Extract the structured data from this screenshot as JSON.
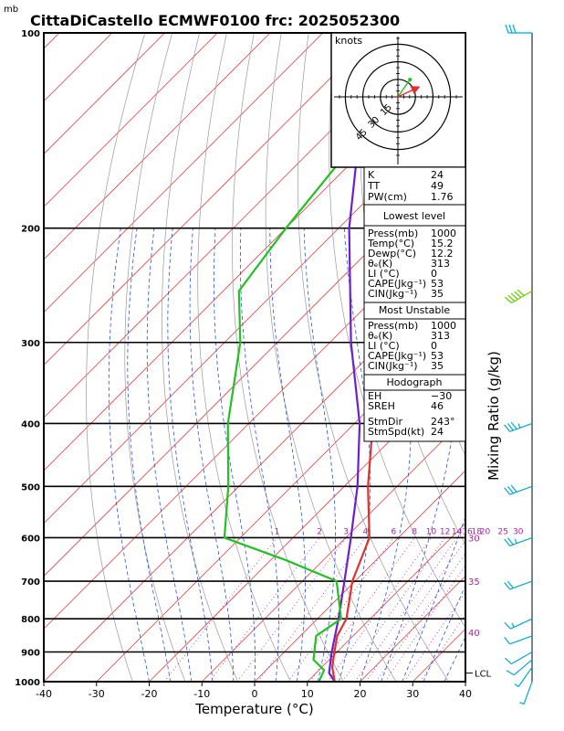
{
  "title": "CittaDiCastello ECMWF0100  frc: 2025052300",
  "units_label": "mb",
  "colors": {
    "temperature": "#e03030",
    "dewpoint": "#22c022",
    "parcel": "#6a1fd0",
    "isotherm": "#e64040",
    "dry_adiabat": "#999999",
    "moist_adiabat": "#2255dd",
    "mixing_ratio": "#aa22aa",
    "wind": "#00aacc"
  },
  "chart_data": {
    "type": "skew-t",
    "title": "CittaDiCastello ECMWF0100  frc: 2025052300",
    "xlabel": "Temperature (°C)",
    "ylabel": "mb",
    "right_axis_label": "Mixing Ratio (g/kg)",
    "x_ticks": [
      -40,
      -30,
      -20,
      -10,
      0,
      10,
      20,
      30,
      40
    ],
    "x_range": [
      -40,
      40
    ],
    "p_ticks": [
      100,
      200,
      300,
      400,
      500,
      600,
      700,
      800,
      900,
      1000
    ],
    "p_range": [
      1000,
      100
    ],
    "mixing_ratio_labels": [
      "1",
      "2",
      "3",
      "4",
      "6",
      "8",
      "10",
      "12",
      "14",
      "16",
      "18",
      "20",
      "25",
      "30"
    ],
    "mixing_ratio_values": [
      1,
      2,
      3,
      4,
      6,
      8,
      10,
      12,
      14,
      16,
      18,
      20,
      25,
      30
    ],
    "theta_e_labels": [
      {
        "text": "30",
        "p": 700
      },
      {
        "text": "35",
        "p": 700
      },
      {
        "text": "40",
        "p": 850
      }
    ],
    "lcl_label": "LCL",
    "lcl_pressure": 970,
    "temperature": [
      {
        "p": 1000,
        "t": 15.2
      },
      {
        "p": 950,
        "t": 12.0
      },
      {
        "p": 900,
        "t": 9.5
      },
      {
        "p": 850,
        "t": 7.0
      },
      {
        "p": 800,
        "t": 5.5
      },
      {
        "p": 700,
        "t": -0.5
      },
      {
        "p": 600,
        "t": -5.5
      },
      {
        "p": 500,
        "t": -15.5
      },
      {
        "p": 400,
        "t": -26.5
      },
      {
        "p": 300,
        "t": -41.0
      },
      {
        "p": 250,
        "t": -51.0
      },
      {
        "p": 200,
        "t": -51.5
      },
      {
        "p": 150,
        "t": -54.0
      },
      {
        "p": 125,
        "t": -55.0
      }
    ],
    "dewpoint": [
      {
        "p": 1000,
        "t": 12.2
      },
      {
        "p": 960,
        "t": 11.0
      },
      {
        "p": 925,
        "t": 7.0
      },
      {
        "p": 850,
        "t": 3.0
      },
      {
        "p": 800,
        "t": 4.5
      },
      {
        "p": 700,
        "t": -3.5
      },
      {
        "p": 650,
        "t": -17.0
      },
      {
        "p": 600,
        "t": -33.0
      },
      {
        "p": 500,
        "t": -42.0
      },
      {
        "p": 400,
        "t": -54.0
      },
      {
        "p": 300,
        "t": -67.0
      },
      {
        "p": 250,
        "t": -77.0
      },
      {
        "p": 200,
        "t": -80.0
      },
      {
        "p": 100,
        "t": -87.0
      }
    ],
    "parcel": [
      {
        "p": 1000,
        "t": 15.2
      },
      {
        "p": 970,
        "t": 12.5
      },
      {
        "p": 900,
        "t": 9.0
      },
      {
        "p": 800,
        "t": 4.0
      },
      {
        "p": 700,
        "t": -2.0
      },
      {
        "p": 600,
        "t": -9.0
      },
      {
        "p": 500,
        "t": -17.5
      },
      {
        "p": 400,
        "t": -29.0
      },
      {
        "p": 300,
        "t": -46.0
      },
      {
        "p": 200,
        "t": -68.0
      },
      {
        "p": 140,
        "t": -85.0
      },
      {
        "p": 120,
        "t": -91.0
      }
    ],
    "winds": [
      {
        "p": 1000,
        "dir": 200,
        "spd": 5
      },
      {
        "p": 950,
        "dir": 215,
        "spd": 8
      },
      {
        "p": 925,
        "dir": 230,
        "spd": 10
      },
      {
        "p": 900,
        "dir": 240,
        "spd": 10
      },
      {
        "p": 850,
        "dir": 250,
        "spd": 12
      },
      {
        "p": 800,
        "dir": 245,
        "spd": 15
      },
      {
        "p": 700,
        "dir": 250,
        "spd": 20
      },
      {
        "p": 600,
        "dir": 250,
        "spd": 25
      },
      {
        "p": 500,
        "dir": 250,
        "spd": 30
      },
      {
        "p": 400,
        "dir": 250,
        "spd": 35
      },
      {
        "p": 250,
        "dir": 240,
        "spd": 50
      },
      {
        "p": 100,
        "dir": 270,
        "spd": 30
      }
    ],
    "hodograph": {
      "units": "knots",
      "ring_labels": [
        "15",
        "30",
        "45"
      ],
      "ring_values": [
        15,
        30,
        45
      ],
      "low_level_vector": {
        "dir": 245,
        "spd": 20
      },
      "upper_vector": {
        "dir": 215,
        "spd": 18
      }
    }
  },
  "indices": {
    "K": "24",
    "TT": "49",
    "PW": "1.76"
  },
  "lowest_level": {
    "header": "Lowest level",
    "press": "1000",
    "temp": "15.2",
    "dewp": "12.2",
    "theta_e": "313",
    "li": "0",
    "cape": "53",
    "cin": "35"
  },
  "most_unstable": {
    "header": "Most Unstable",
    "press": "1000",
    "theta_e": "313",
    "li": "0",
    "cape": "53",
    "cin": "35"
  },
  "hodograph_stats": {
    "header": "Hodograph",
    "eh": "−30",
    "sreh": "46",
    "stmdir": "243°",
    "stmspd": "24"
  }
}
